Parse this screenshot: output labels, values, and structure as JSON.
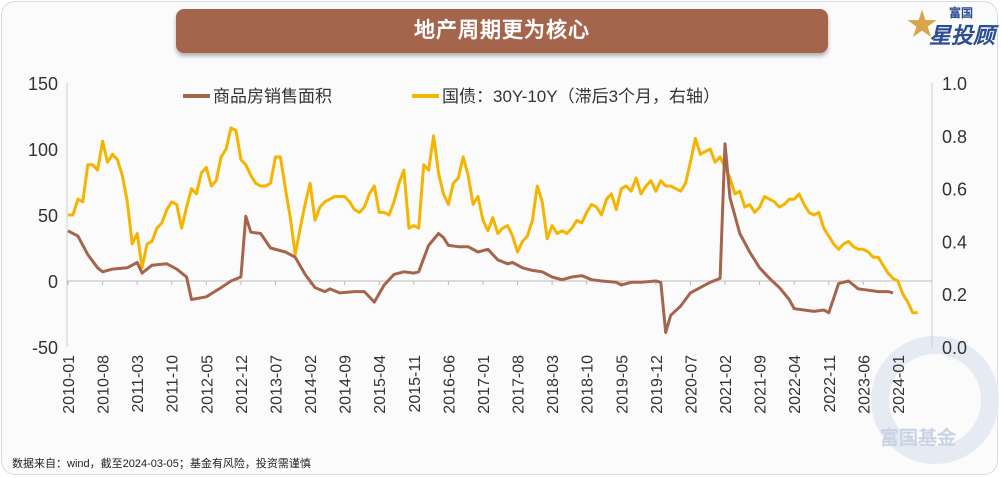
{
  "title": "地产周期更为核心",
  "logo": {
    "line1": "富国",
    "line2": "星投顾"
  },
  "watermark": "富国基金",
  "footer": "数据来自：wind，截至2024-03-05；基金有风险，投资需谨慎",
  "chart_data": {
    "type": "line",
    "title": "地产周期更为核心",
    "left_axis": {
      "ylim": [
        -50,
        150
      ],
      "ticks": [
        "150",
        "100",
        "50",
        "0",
        "-50"
      ],
      "tick_values": [
        150,
        100,
        50,
        0,
        -50
      ]
    },
    "right_axis": {
      "ylim": [
        0,
        1
      ],
      "ticks": [
        "1.0",
        "0.8",
        "0.6",
        "0.4",
        "0.2",
        "0.0"
      ],
      "tick_values": [
        1.0,
        0.8,
        0.6,
        0.4,
        0.2,
        0.0
      ]
    },
    "x_tick_labels": [
      "2010-01",
      "2010-08",
      "2011-03",
      "2011-10",
      "2012-05",
      "2012-12",
      "2013-07",
      "2014-02",
      "2014-09",
      "2015-04",
      "2015-11",
      "2016-06",
      "2017-01",
      "2017-08",
      "2018-03",
      "2018-10",
      "2019-05",
      "2019-12",
      "2020-07",
      "2021-02",
      "2021-09",
      "2022-04",
      "2022-11",
      "2023-06",
      "2024-01"
    ],
    "legend_position": "top",
    "colors": {
      "sales": "#a5654d",
      "bond": "#f5b400"
    },
    "series": [
      {
        "name": "商品房销售面积",
        "axis": "left",
        "start": "2010-01",
        "points": [
          [
            "2010-01",
            38
          ],
          [
            "2010-03",
            34
          ],
          [
            "2010-05",
            20
          ],
          [
            "2010-07",
            10
          ],
          [
            "2010-08",
            7
          ],
          [
            "2010-10",
            9
          ],
          [
            "2011-01",
            10
          ],
          [
            "2011-03",
            14
          ],
          [
            "2011-04",
            6
          ],
          [
            "2011-06",
            12
          ],
          [
            "2011-09",
            13
          ],
          [
            "2011-11",
            9
          ],
          [
            "2012-01",
            3
          ],
          [
            "2012-02",
            -14
          ],
          [
            "2012-05",
            -12
          ],
          [
            "2012-08",
            -5
          ],
          [
            "2012-10",
            0
          ],
          [
            "2012-12",
            3
          ],
          [
            "2013-01",
            49
          ],
          [
            "2013-02",
            37
          ],
          [
            "2013-04",
            36
          ],
          [
            "2013-06",
            25
          ],
          [
            "2013-09",
            22
          ],
          [
            "2013-11",
            18
          ],
          [
            "2014-01",
            5
          ],
          [
            "2014-03",
            -5
          ],
          [
            "2014-05",
            -8
          ],
          [
            "2014-06",
            -6
          ],
          [
            "2014-08",
            -9
          ],
          [
            "2014-11",
            -8
          ],
          [
            "2015-01",
            -8
          ],
          [
            "2015-03",
            -16
          ],
          [
            "2015-05",
            -3
          ],
          [
            "2015-07",
            5
          ],
          [
            "2015-09",
            7
          ],
          [
            "2015-11",
            6
          ],
          [
            "2015-12",
            7
          ],
          [
            "2016-02",
            27
          ],
          [
            "2016-04",
            36
          ],
          [
            "2016-05",
            33
          ],
          [
            "2016-06",
            27
          ],
          [
            "2016-08",
            26
          ],
          [
            "2016-10",
            26
          ],
          [
            "2016-12",
            22
          ],
          [
            "2017-02",
            24
          ],
          [
            "2017-04",
            16
          ],
          [
            "2017-06",
            13
          ],
          [
            "2017-07",
            14
          ],
          [
            "2017-09",
            10
          ],
          [
            "2017-11",
            8
          ],
          [
            "2018-01",
            7
          ],
          [
            "2018-03",
            3
          ],
          [
            "2018-05",
            1
          ],
          [
            "2018-07",
            3
          ],
          [
            "2018-09",
            4
          ],
          [
            "2018-11",
            1
          ],
          [
            "2019-01",
            0
          ],
          [
            "2019-04",
            -1
          ],
          [
            "2019-05",
            -3
          ],
          [
            "2019-07",
            -1
          ],
          [
            "2019-09",
            -1
          ],
          [
            "2019-12",
            0
          ],
          [
            "2020-01",
            -1
          ],
          [
            "2020-02",
            -39
          ],
          [
            "2020-03",
            -26
          ],
          [
            "2020-05",
            -19
          ],
          [
            "2020-07",
            -9
          ],
          [
            "2020-09",
            -5
          ],
          [
            "2020-11",
            -1
          ],
          [
            "2021-01",
            2
          ],
          [
            "2021-02",
            104
          ],
          [
            "2021-03",
            63
          ],
          [
            "2021-05",
            36
          ],
          [
            "2021-07",
            22
          ],
          [
            "2021-09",
            10
          ],
          [
            "2021-11",
            2
          ],
          [
            "2022-01",
            -5
          ],
          [
            "2022-03",
            -14
          ],
          [
            "2022-04",
            -21
          ],
          [
            "2022-06",
            -22
          ],
          [
            "2022-08",
            -23
          ],
          [
            "2022-10",
            -22
          ],
          [
            "2022-11",
            -24
          ],
          [
            "2023-01",
            -2
          ],
          [
            "2023-03",
            0
          ],
          [
            "2023-05",
            -6
          ],
          [
            "2023-07",
            -7
          ],
          [
            "2023-09",
            -8
          ],
          [
            "2023-11",
            -8
          ],
          [
            "2023-12",
            -9
          ]
        ]
      },
      {
        "name": "国债：30Y-10Y（滞后3个月，右轴）",
        "axis": "right",
        "start": "2010-01",
        "monthly": [
          0.5,
          0.5,
          0.56,
          0.55,
          0.69,
          0.69,
          0.67,
          0.78,
          0.7,
          0.73,
          0.71,
          0.65,
          0.55,
          0.39,
          0.43,
          0.3,
          0.39,
          0.4,
          0.45,
          0.47,
          0.52,
          0.55,
          0.54,
          0.45,
          0.53,
          0.6,
          0.58,
          0.66,
          0.68,
          0.61,
          0.63,
          0.72,
          0.75,
          0.83,
          0.82,
          0.71,
          0.69,
          0.65,
          0.62,
          0.61,
          0.61,
          0.62,
          0.72,
          0.72,
          0.6,
          0.49,
          0.35,
          0.45,
          0.54,
          0.62,
          0.48,
          0.53,
          0.55,
          0.56,
          0.57,
          0.57,
          0.57,
          0.55,
          0.52,
          0.51,
          0.53,
          0.58,
          0.61,
          0.51,
          0.51,
          0.5,
          0.55,
          0.62,
          0.67,
          0.45,
          0.46,
          0.45,
          0.69,
          0.67,
          0.8,
          0.66,
          0.58,
          0.54,
          0.62,
          0.64,
          0.72,
          0.65,
          0.54,
          0.57,
          0.48,
          0.44,
          0.49,
          0.43,
          0.45,
          0.46,
          0.42,
          0.36,
          0.4,
          0.42,
          0.48,
          0.61,
          0.55,
          0.41,
          0.46,
          0.43,
          0.44,
          0.43,
          0.45,
          0.48,
          0.47,
          0.51,
          0.54,
          0.53,
          0.5,
          0.56,
          0.58,
          0.52,
          0.6,
          0.61,
          0.59,
          0.64,
          0.58,
          0.61,
          0.63,
          0.59,
          0.63,
          0.61,
          0.61,
          0.6,
          0.59,
          0.62,
          0.7,
          0.79,
          0.73,
          0.74,
          0.75,
          0.7,
          0.72,
          0.68,
          0.64,
          0.58,
          0.59,
          0.53,
          0.54,
          0.51,
          0.53,
          0.57,
          0.56,
          0.55,
          0.53,
          0.54,
          0.56,
          0.56,
          0.58,
          0.54,
          0.51,
          0.5,
          0.51,
          0.45,
          0.42,
          0.39,
          0.37,
          0.39,
          0.4,
          0.38,
          0.37,
          0.37,
          0.36,
          0.34,
          0.34,
          0.31,
          0.28,
          0.26,
          0.25,
          0.2,
          0.17,
          0.13,
          0.13
        ]
      }
    ]
  }
}
